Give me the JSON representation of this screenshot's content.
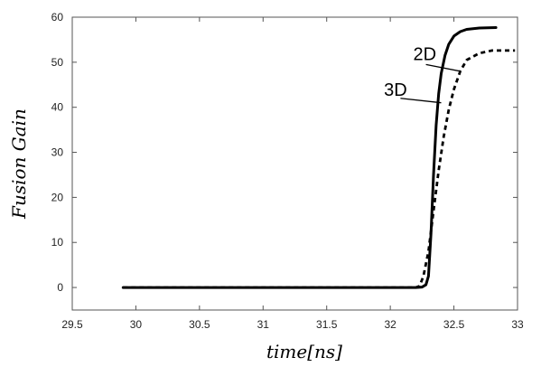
{
  "chart_data": {
    "type": "line",
    "title": "",
    "xlabel": "time[ns]",
    "ylabel": "Fusion Gain",
    "xlim": [
      29.5,
      33
    ],
    "ylim": [
      -5,
      60
    ],
    "xticks": [
      29.5,
      30,
      30.5,
      31,
      31.5,
      32,
      32.5,
      33
    ],
    "xtick_labels": [
      "29.5",
      "30",
      "30.5",
      "31",
      "31.5",
      "32",
      "32.5",
      "33"
    ],
    "yticks": [
      0,
      10,
      20,
      30,
      40,
      50,
      60
    ],
    "ytick_labels": [
      "0",
      "10",
      "20",
      "30",
      "40",
      "50",
      "60"
    ],
    "grid": false,
    "series": [
      {
        "name": "3D",
        "style": "solid",
        "color": "#000000",
        "x": [
          29.9,
          30.5,
          31.0,
          31.5,
          32.0,
          32.2,
          32.25,
          32.28,
          32.3,
          32.32,
          32.34,
          32.36,
          32.38,
          32.4,
          32.43,
          32.46,
          32.5,
          32.55,
          32.6,
          32.7,
          32.83
        ],
        "y": [
          0,
          0,
          0,
          0,
          0,
          0,
          0.1,
          0.6,
          2.5,
          12,
          25,
          36,
          43,
          47.5,
          51.5,
          54,
          55.8,
          56.8,
          57.3,
          57.6,
          57.7
        ]
      },
      {
        "name": "2D",
        "style": "dashed",
        "color": "#000000",
        "x": [
          29.9,
          30.5,
          31.0,
          31.5,
          32.0,
          32.2,
          32.23,
          32.26,
          32.3,
          32.34,
          32.38,
          32.42,
          32.46,
          32.5,
          32.55,
          32.6,
          32.7,
          32.8,
          32.98
        ],
        "y": [
          0,
          0,
          0,
          0,
          0,
          0,
          0.3,
          2.5,
          8,
          17,
          26,
          33.5,
          39.5,
          44,
          48,
          50.5,
          52,
          52.6,
          52.6
        ]
      }
    ],
    "annotations": [
      {
        "text": "2D",
        "x": 32.18,
        "y": 50.5,
        "arrow_from": [
          32.28,
          49.5
        ],
        "arrow_to": [
          32.55,
          48
        ]
      },
      {
        "text": "3D",
        "x": 31.95,
        "y": 42.5,
        "arrow_from": [
          32.08,
          42
        ],
        "arrow_to": [
          32.4,
          41
        ]
      }
    ]
  }
}
